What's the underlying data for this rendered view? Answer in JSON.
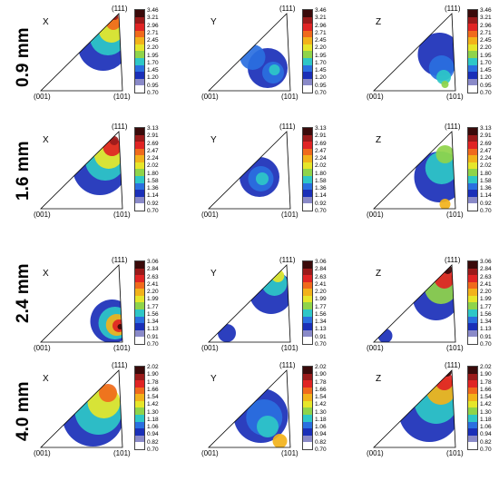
{
  "rows": [
    {
      "label": "0.9 mm",
      "scale": [
        "3.46",
        "3.21",
        "2.96",
        "2.71",
        "2.45",
        "2.20",
        "1.95",
        "1.70",
        "1.45",
        "1.20",
        "0.95",
        "0.70"
      ],
      "panels": [
        {
          "axis": "X",
          "top": "(111)",
          "left": "(001)",
          "right": "(101)"
        },
        {
          "axis": "Y",
          "top": "(111)",
          "left": "(001)",
          "right": "(101)"
        },
        {
          "axis": "Z",
          "top": "(111)",
          "left": "(001)",
          "right": "(101)"
        }
      ]
    },
    {
      "label": "1.6 mm",
      "scale": [
        "3.13",
        "2.91",
        "2.69",
        "2.47",
        "2.24",
        "2.02",
        "1.80",
        "1.58",
        "1.36",
        "1.14",
        "0.92",
        "0.70"
      ],
      "panels": [
        {
          "axis": "X",
          "top": "(111)",
          "left": "(001)",
          "right": "(101)"
        },
        {
          "axis": "Y",
          "top": "(111)",
          "left": "(001)",
          "right": "(101)"
        },
        {
          "axis": "Z",
          "top": "(111)",
          "left": "(001)",
          "right": "(101)"
        }
      ]
    },
    {
      "label": "2.4 mm",
      "scale": [
        "3.06",
        "2.84",
        "2.63",
        "2.41",
        "2.20",
        "1.99",
        "1.77",
        "1.56",
        "1.34",
        "1.13",
        "0.91",
        "0.70"
      ],
      "panels": [
        {
          "axis": "X",
          "top": "(111)",
          "left": "(001)",
          "right": "(101)"
        },
        {
          "axis": "Y",
          "top": "(111)",
          "left": "(001)",
          "right": "(101)"
        },
        {
          "axis": "Z",
          "top": "(111)",
          "left": "(001)",
          "right": "(101)"
        }
      ]
    },
    {
      "label": "4.0 mm",
      "scale": [
        "2.02",
        "1.90",
        "1.78",
        "1.66",
        "1.54",
        "1.42",
        "1.30",
        "1.18",
        "1.06",
        "0.94",
        "0.82",
        "0.70"
      ],
      "panels": [
        {
          "axis": "X",
          "top": "(111)",
          "left": "(001)",
          "right": "(101)"
        },
        {
          "axis": "Y",
          "top": "(111)",
          "left": "(001)",
          "right": "(101)"
        },
        {
          "axis": "Z",
          "top": "(111)",
          "left": "(001)",
          "right": "(101)"
        }
      ]
    }
  ],
  "colors": {
    "scale": [
      "#3a0a0a",
      "#9a1a1a",
      "#e02424",
      "#f06a1c",
      "#f2b21a",
      "#e6e62a",
      "#8fd44a",
      "#2ec7c7",
      "#2a6fe0",
      "#1a2fb8",
      "#8a8ac8",
      "#ffffff"
    ]
  }
}
